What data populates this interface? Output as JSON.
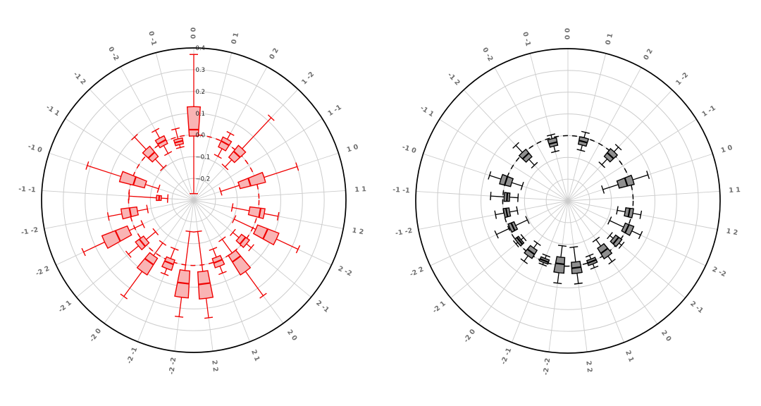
{
  "figure": {
    "description": "Two polar box-and-whisker plots of coefficient distributions per mode pair",
    "background": "#ffffff",
    "grid_color": "#cccccc",
    "outer_ring_color": "#000000",
    "angle_labels": [
      "0 0",
      "0 1",
      "0 2",
      "1 -2",
      "1 -1",
      "1 0",
      "1 1",
      "1 2",
      "2 -2",
      "2 -1",
      "2 0",
      "2 1",
      "2 2",
      "-2 -2",
      "-2 -1",
      "-2 0",
      "-2 1",
      "-2 2",
      "-1 -2",
      "-1 -1",
      "-1 0",
      "-1 1",
      "-1 2",
      "0 -2",
      "0 -1"
    ],
    "angular_step_deg": 14.4
  },
  "chart_data": [
    {
      "type": "polar_boxplot",
      "position": "left",
      "r_range": [
        -0.3,
        0.4
      ],
      "grid_circle_values": [
        -0.2,
        -0.1,
        0.0,
        0.1,
        0.2,
        0.3
      ],
      "zero_circle_value": 0.0,
      "zero_circle_style": "dashed",
      "box_edge_color": "#f00000",
      "box_fill_color": "#f9b4b4",
      "median_color": "#f00000",
      "whisker_color": "#f00000",
      "r_tick_labels": [
        {
          "value": 0.4,
          "label": "0.4"
        },
        {
          "value": 0.3,
          "label": "0.3"
        },
        {
          "value": 0.2,
          "label": "0.2"
        },
        {
          "value": 0.1,
          "label": "0.1"
        },
        {
          "value": 0.0,
          "label": "0.0"
        },
        {
          "value": -0.1,
          "label": "−0.1"
        },
        {
          "value": -0.2,
          "label": "−0.2"
        }
      ],
      "boxes": [
        {
          "angle_index": 0,
          "label": "0 0",
          "q1": -0.005,
          "median": 0.025,
          "q3": 0.13,
          "whisker_lo": -0.27,
          "whisker_hi": 0.37
        },
        {
          "angle_index": 2,
          "label": "0 2",
          "q1": -0.03,
          "median": 0.0,
          "q3": 0.02,
          "whisker_lo": -0.07,
          "whisker_hi": 0.05
        },
        {
          "angle_index": 3,
          "label": "1 -2",
          "q1": -0.045,
          "median": -0.01,
          "q3": 0.025,
          "whisker_lo": -0.09,
          "whisker_hi": 0.22
        },
        {
          "angle_index": 5,
          "label": "1 0",
          "q1": -0.08,
          "median": -0.03,
          "q3": 0.04,
          "whisker_lo": -0.17,
          "whisker_hi": 0.2
        },
        {
          "angle_index": 7,
          "label": "1 2",
          "q1": -0.04,
          "median": 0.01,
          "q3": 0.03,
          "whisker_lo": -0.12,
          "whisker_hi": 0.095
        },
        {
          "angle_index": 8,
          "label": "2 -2",
          "q1": 0.015,
          "median": 0.065,
          "q3": 0.12,
          "whisker_lo": -0.095,
          "whisker_hi": 0.23
        },
        {
          "angle_index": 9,
          "label": "2 -1",
          "q1": -0.03,
          "median": -0.007,
          "q3": 0.015,
          "whisker_lo": -0.067,
          "whisker_hi": 0.043
        },
        {
          "angle_index": 10,
          "label": "2 0",
          "q1": 0.0,
          "median": 0.035,
          "q3": 0.105,
          "whisker_lo": -0.078,
          "whisker_hi": 0.243
        },
        {
          "angle_index": 11,
          "label": "2 1",
          "q1": -0.018,
          "median": 0.003,
          "q3": 0.026,
          "whisker_lo": -0.059,
          "whisker_hi": 0.06
        },
        {
          "angle_index": 12,
          "label": "2 2",
          "q1": 0.03,
          "median": 0.088,
          "q3": 0.155,
          "whisker_lo": -0.155,
          "whisker_hi": 0.245
        },
        {
          "angle_index": 13,
          "label": "-2 -2",
          "q1": 0.026,
          "median": 0.085,
          "q3": 0.15,
          "whisker_lo": -0.155,
          "whisker_hi": 0.24
        },
        {
          "angle_index": 14,
          "label": "-2 -1",
          "q1": -0.011,
          "median": 0.01,
          "q3": 0.038,
          "whisker_lo": -0.06,
          "whisker_hi": 0.065
        },
        {
          "angle_index": 15,
          "label": "-2 0",
          "q1": 0.015,
          "median": 0.05,
          "q3": 0.105,
          "whisker_lo": -0.057,
          "whisker_hi": 0.247
        },
        {
          "angle_index": 16,
          "label": "-2 1",
          "q1": -0.016,
          "median": 0.008,
          "q3": 0.03,
          "whisker_lo": -0.072,
          "whisker_hi": 0.09
        },
        {
          "angle_index": 17,
          "label": "-2 2",
          "q1": 0.028,
          "median": 0.087,
          "q3": 0.153,
          "whisker_lo": -0.041,
          "whisker_hi": 0.26
        },
        {
          "angle_index": 18,
          "label": "-1 -2",
          "q1": -0.036,
          "median": -0.002,
          "q3": 0.037,
          "whisker_lo": -0.083,
          "whisker_hi": 0.1
        },
        {
          "angle_index": 19,
          "label": "-1 -1",
          "q1": -0.15,
          "median": -0.14,
          "q3": -0.128,
          "whisker_lo": -0.18,
          "whisker_hi": -0.002
        },
        {
          "angle_index": 20,
          "label": "-1 0",
          "q1": -0.066,
          "median": -0.013,
          "q3": 0.052,
          "whisker_lo": -0.13,
          "whisker_hi": 0.215
        },
        {
          "angle_index": 22,
          "label": "-1 2",
          "q1": -0.041,
          "median": -0.015,
          "q3": 0.02,
          "whisker_lo": -0.096,
          "whisker_hi": 0.098
        },
        {
          "angle_index": 23,
          "label": "0 -2",
          "q1": -0.013,
          "median": 0.006,
          "q3": 0.026,
          "whisker_lo": -0.055,
          "whisker_hi": 0.066
        },
        {
          "angle_index": 24,
          "label": "0 -1",
          "q1": -0.036,
          "median": -0.022,
          "q3": -0.009,
          "whisker_lo": -0.05,
          "whisker_hi": 0.038
        }
      ]
    },
    {
      "type": "polar_boxplot",
      "position": "right",
      "r_range": [
        -0.3,
        0.4
      ],
      "grid_circle_values": [
        -0.2,
        -0.1,
        0.0,
        0.1,
        0.2,
        0.3
      ],
      "zero_circle_value": 0.0,
      "zero_circle_style": "dashed",
      "box_edge_color": "#000000",
      "box_fill_color": "#8f8f8f",
      "median_color": "#000000",
      "whisker_color": "#000000",
      "r_tick_labels": [],
      "boxes": [
        {
          "angle_index": 1,
          "label": "0 1",
          "q1": -0.035,
          "median": -0.018,
          "q3": 0.0,
          "whisker_lo": -0.06,
          "whisker_hi": 0.025
        },
        {
          "angle_index": 3,
          "label": "1 -2",
          "q1": -0.036,
          "median": -0.014,
          "q3": 0.01,
          "whisker_lo": -0.072,
          "whisker_hi": 0.039
        },
        {
          "angle_index": 5,
          "label": "1 0",
          "q1": -0.057,
          "median": -0.018,
          "q3": 0.014,
          "whisker_lo": -0.131,
          "whisker_hi": 0.087
        },
        {
          "angle_index": 7,
          "label": "1 2",
          "q1": -0.032,
          "median": -0.013,
          "q3": 0.004,
          "whisker_lo": -0.069,
          "whisker_hi": 0.041
        },
        {
          "angle_index": 8,
          "label": "2 -2",
          "q1": -0.017,
          "median": 0.001,
          "q3": 0.025,
          "whisker_lo": -0.088,
          "whisker_hi": 0.069
        },
        {
          "angle_index": 9,
          "label": "2 -1",
          "q1": -0.03,
          "median": -0.013,
          "q3": 0.005,
          "whisker_lo": -0.05,
          "whisker_hi": 0.02
        },
        {
          "angle_index": 10,
          "label": "2 0",
          "q1": -0.043,
          "median": -0.015,
          "q3": 0.014,
          "whisker_lo": -0.08,
          "whisker_hi": 0.045
        },
        {
          "angle_index": 11,
          "label": "2 1",
          "q1": -0.012,
          "median": 0.0,
          "q3": 0.012,
          "whisker_lo": -0.03,
          "whisker_hi": 0.03
        },
        {
          "angle_index": 12,
          "label": "2 2",
          "q1": -0.017,
          "median": 0.01,
          "q3": 0.035,
          "whisker_lo": -0.086,
          "whisker_hi": 0.083
        },
        {
          "angle_index": 13,
          "label": "-2 -2",
          "q1": -0.039,
          "median": -0.008,
          "q3": 0.033,
          "whisker_lo": -0.092,
          "whisker_hi": 0.081
        },
        {
          "angle_index": 14,
          "label": "-2 -1",
          "q1": -0.015,
          "median": -0.004,
          "q3": 0.005,
          "whisker_lo": -0.03,
          "whisker_hi": 0.015
        },
        {
          "angle_index": 15,
          "label": "-2 0",
          "q1": -0.032,
          "median": -0.01,
          "q3": 0.012,
          "whisker_lo": -0.06,
          "whisker_hi": 0.043
        },
        {
          "angle_index": 16,
          "label": "-2 1",
          "q1": -0.02,
          "median": -0.011,
          "q3": 0.0,
          "whisker_lo": -0.035,
          "whisker_hi": 0.01
        },
        {
          "angle_index": 17,
          "label": "-2 2",
          "q1": -0.034,
          "median": -0.02,
          "q3": -0.005,
          "whisker_lo": -0.094,
          "whisker_hi": 0.063
        },
        {
          "angle_index": 18,
          "label": "-1 -2",
          "q1": -0.027,
          "median": -0.013,
          "q3": -0.001,
          "whisker_lo": -0.063,
          "whisker_hi": 0.039
        },
        {
          "angle_index": 19,
          "label": "-1 -1",
          "q1": -0.031,
          "median": -0.019,
          "q3": -0.006,
          "whisker_lo": -0.07,
          "whisker_hi": 0.056
        },
        {
          "angle_index": 20,
          "label": "-1 0",
          "q1": -0.028,
          "median": 0.0,
          "q3": 0.024,
          "whisker_lo": -0.079,
          "whisker_hi": 0.079
        },
        {
          "angle_index": 22,
          "label": "-1 2",
          "q1": -0.038,
          "median": -0.016,
          "q3": 0.006,
          "whisker_lo": -0.075,
          "whisker_hi": 0.05
        },
        {
          "angle_index": 24,
          "label": "0 -1",
          "q1": -0.04,
          "median": -0.025,
          "q3": -0.005,
          "whisker_lo": -0.066,
          "whisker_hi": 0.013
        }
      ]
    }
  ]
}
